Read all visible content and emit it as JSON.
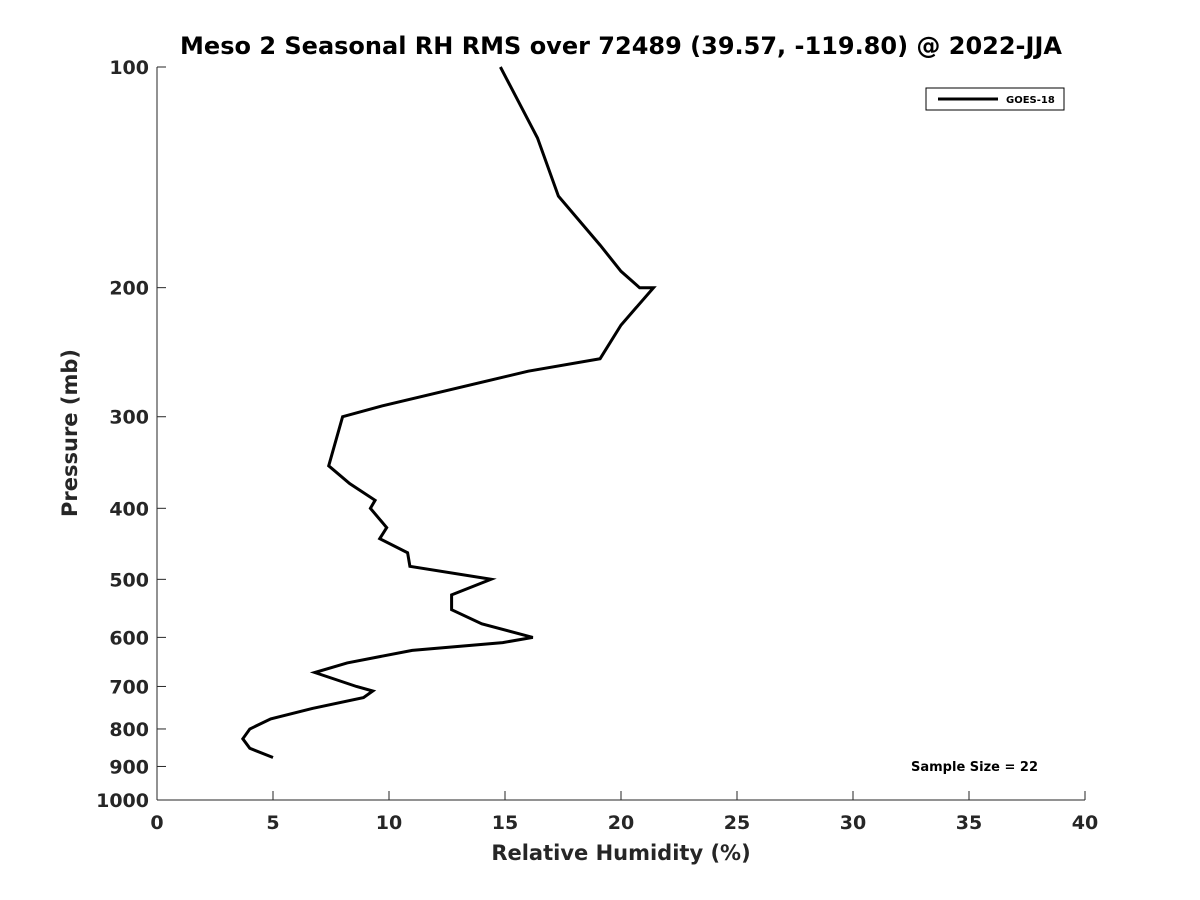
{
  "chart_data": {
    "type": "line",
    "title": "Meso 2 Seasonal RH RMS over 72489 (39.57, -119.80) @ 2022-JJA",
    "xlabel": "Relative Humidity (%)",
    "ylabel": "Pressure (mb)",
    "xlim": [
      0,
      40
    ],
    "ylim": [
      100,
      1000
    ],
    "y_scale": "log",
    "y_reversed": true,
    "grid": false,
    "legend_position": "top-right",
    "x_ticks": [
      "0",
      "5",
      "10",
      "15",
      "20",
      "25",
      "30",
      "35",
      "40"
    ],
    "y_ticks": [
      "100",
      "200",
      "300",
      "400",
      "500",
      "600",
      "700",
      "800",
      "900",
      "1000"
    ],
    "series": [
      {
        "name": "GOES-18",
        "color": "#000000",
        "points": [
          {
            "x": 14.8,
            "p": 100
          },
          {
            "x": 16.4,
            "p": 125
          },
          {
            "x": 17.3,
            "p": 150
          },
          {
            "x": 19.1,
            "p": 175
          },
          {
            "x": 20.0,
            "p": 190
          },
          {
            "x": 20.8,
            "p": 200
          },
          {
            "x": 21.4,
            "p": 200
          },
          {
            "x": 20.0,
            "p": 225
          },
          {
            "x": 19.1,
            "p": 250
          },
          {
            "x": 16.0,
            "p": 260
          },
          {
            "x": 9.7,
            "p": 290
          },
          {
            "x": 8.0,
            "p": 300
          },
          {
            "x": 7.4,
            "p": 350
          },
          {
            "x": 8.3,
            "p": 370
          },
          {
            "x": 9.4,
            "p": 390
          },
          {
            "x": 9.2,
            "p": 400
          },
          {
            "x": 9.9,
            "p": 425
          },
          {
            "x": 9.6,
            "p": 440
          },
          {
            "x": 10.8,
            "p": 460
          },
          {
            "x": 10.9,
            "p": 480
          },
          {
            "x": 14.4,
            "p": 500
          },
          {
            "x": 12.7,
            "p": 525
          },
          {
            "x": 12.7,
            "p": 550
          },
          {
            "x": 14.0,
            "p": 575
          },
          {
            "x": 16.2,
            "p": 600
          },
          {
            "x": 14.9,
            "p": 610
          },
          {
            "x": 11.0,
            "p": 625
          },
          {
            "x": 8.2,
            "p": 650
          },
          {
            "x": 6.8,
            "p": 670
          },
          {
            "x": 8.6,
            "p": 700
          },
          {
            "x": 9.3,
            "p": 710
          },
          {
            "x": 8.9,
            "p": 725
          },
          {
            "x": 6.7,
            "p": 750
          },
          {
            "x": 4.9,
            "p": 775
          },
          {
            "x": 4.0,
            "p": 800
          },
          {
            "x": 3.7,
            "p": 825
          },
          {
            "x": 4.0,
            "p": 850
          },
          {
            "x": 5.0,
            "p": 875
          }
        ]
      }
    ],
    "annotations": [
      "Sample Size = 22"
    ]
  }
}
